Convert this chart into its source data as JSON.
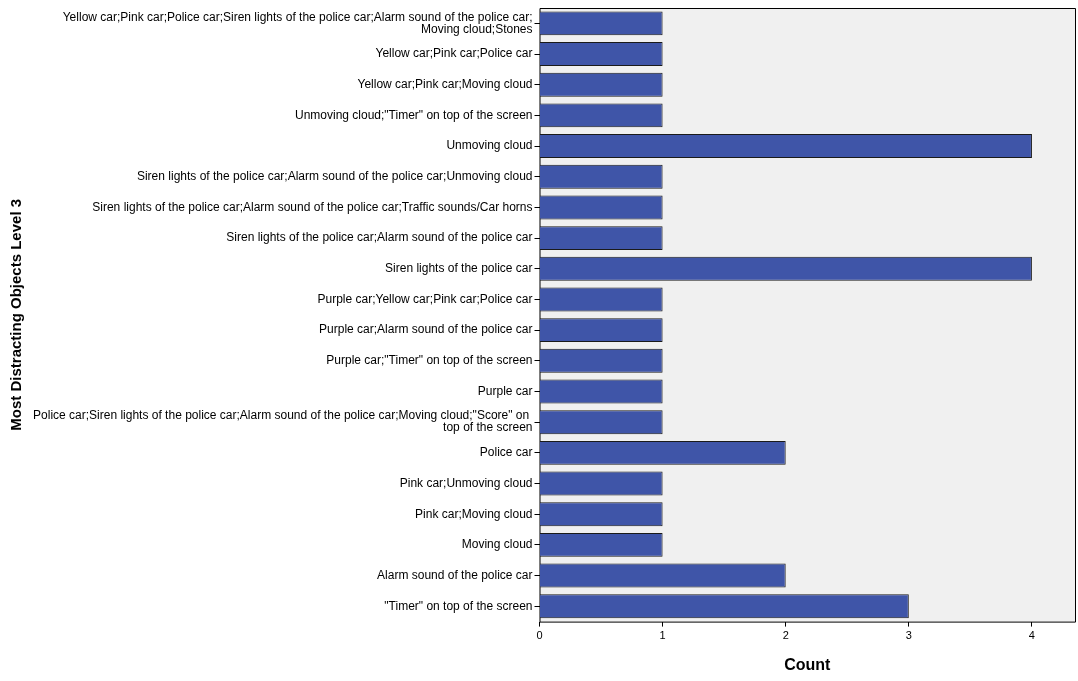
{
  "chart_data": {
    "type": "bar",
    "orientation": "horizontal",
    "xlabel": "Count",
    "ylabel": "Most Distracting Objects Level 3",
    "categories": [
      "Yellow car;Pink car;Police car;Siren lights of the police car;Alarm sound of the police car;Moving cloud;Stones",
      "Yellow car;Pink car;Police car",
      "Yellow car;Pink car;Moving cloud",
      "Unmoving cloud;\"Timer\" on top of the screen",
      "Unmoving cloud",
      "Siren lights of the police car;Alarm sound of the police car;Unmoving cloud",
      "Siren lights of the police car;Alarm sound of the police car;Traffic sounds/Car horns",
      "Siren lights of the police car;Alarm sound of the police car",
      "Siren lights of the police car",
      "Purple car;Yellow car;Pink car;Police car",
      "Purple car;Alarm sound of the police car",
      "Purple car;\"Timer\" on top of the screen",
      "Purple car",
      "Police car;Siren lights of the police car;Alarm sound of the police car;Moving cloud;\"Score\" on top of the screen",
      "Police car",
      "Pink car;Unmoving cloud",
      "Pink car;Moving cloud",
      "Moving cloud",
      "Alarm sound of the police car",
      "\"Timer\" on top of the screen"
    ],
    "values": [
      1,
      1,
      1,
      1,
      4,
      1,
      1,
      1,
      4,
      1,
      1,
      1,
      1,
      1,
      2,
      1,
      1,
      1,
      2,
      3
    ],
    "color": "#3f55a8",
    "xlim": [
      0,
      4.35
    ],
    "xticks": [
      0,
      1,
      2,
      3,
      4
    ],
    "grid": false,
    "legend": false
  }
}
